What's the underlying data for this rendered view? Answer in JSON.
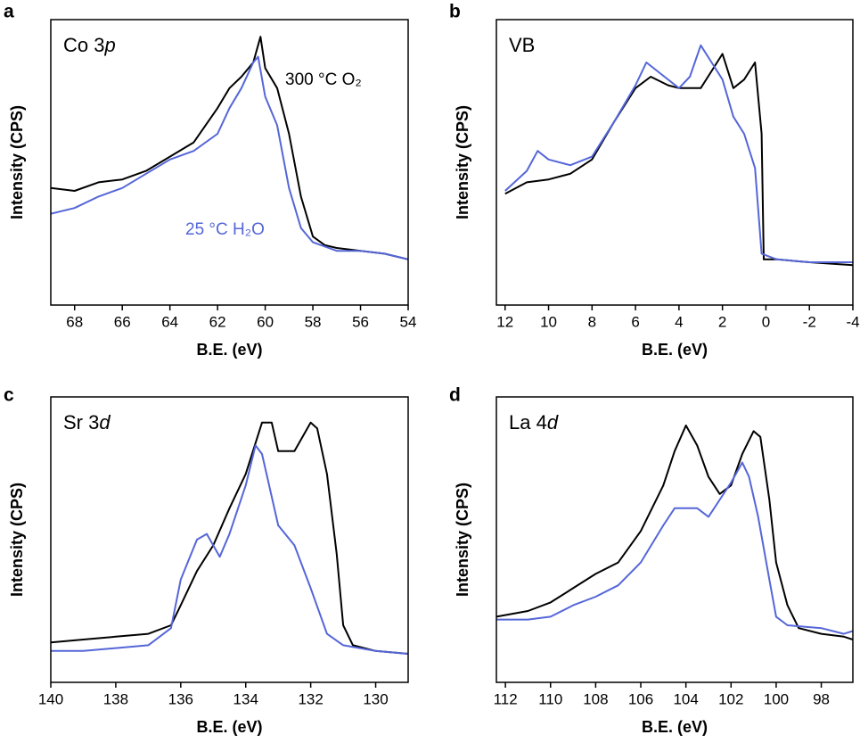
{
  "chart_data": [
    {
      "type": "line",
      "panel": "a",
      "label": [
        "Co 3",
        "p"
      ],
      "xlabel": "B.E. (eV)",
      "ylabel": "Intensity (CPS)",
      "xlim": [
        69,
        54
      ],
      "xticks": [
        68,
        66,
        64,
        62,
        60,
        58,
        56,
        54
      ],
      "ylim": [
        0,
        1
      ],
      "series": [
        {
          "name": "300 °C O₂",
          "color": "#000000",
          "x": [
            69,
            68,
            67,
            66,
            65,
            64,
            63,
            62,
            61.5,
            61,
            60.5,
            60.2,
            60,
            59.5,
            59,
            58.5,
            58,
            57.5,
            57,
            56,
            55,
            54
          ],
          "values": [
            0.41,
            0.4,
            0.43,
            0.44,
            0.47,
            0.52,
            0.57,
            0.69,
            0.76,
            0.8,
            0.85,
            0.94,
            0.83,
            0.76,
            0.6,
            0.38,
            0.24,
            0.21,
            0.2,
            0.19,
            0.18,
            0.16
          ]
        },
        {
          "name": "25 °C H₂O",
          "color": "#5566d8",
          "x": [
            69,
            68,
            67,
            66,
            65,
            64,
            63,
            62,
            61.5,
            61,
            60.5,
            60.3,
            60,
            59.5,
            59,
            58.5,
            58,
            57,
            56,
            55,
            54
          ],
          "values": [
            0.32,
            0.34,
            0.38,
            0.41,
            0.46,
            0.51,
            0.54,
            0.6,
            0.69,
            0.76,
            0.85,
            0.87,
            0.73,
            0.63,
            0.41,
            0.27,
            0.22,
            0.19,
            0.19,
            0.18,
            0.16
          ]
        }
      ]
    },
    {
      "type": "line",
      "panel": "b",
      "label": [
        "VB"
      ],
      "xlabel": "B.E. (eV)",
      "ylabel": "Intensity (CPS)",
      "xlim": [
        12.4,
        -4
      ],
      "xticks": [
        12,
        10,
        8,
        6,
        4,
        2,
        0,
        -2,
        -4
      ],
      "ylim": [
        0,
        1
      ],
      "series": [
        {
          "color": "#000000",
          "x": [
            12,
            11,
            10,
            9,
            8,
            7,
            6,
            5.3,
            4.5,
            4,
            3,
            2.5,
            2,
            1.5,
            1,
            0.5,
            0.2,
            0.1,
            -0.5,
            -2,
            -4
          ],
          "values": [
            0.39,
            0.43,
            0.44,
            0.46,
            0.51,
            0.64,
            0.76,
            0.8,
            0.77,
            0.76,
            0.76,
            0.82,
            0.88,
            0.76,
            0.79,
            0.85,
            0.6,
            0.16,
            0.16,
            0.15,
            0.14
          ]
        },
        {
          "color": "#5566d8",
          "x": [
            12,
            11,
            10.5,
            10,
            9,
            8,
            7,
            6,
            5.5,
            5,
            4,
            3.5,
            3,
            2.5,
            2,
            1.5,
            1,
            0.5,
            0.2,
            -0.5,
            -2,
            -4
          ],
          "values": [
            0.4,
            0.47,
            0.54,
            0.51,
            0.49,
            0.52,
            0.64,
            0.77,
            0.85,
            0.82,
            0.76,
            0.8,
            0.91,
            0.85,
            0.79,
            0.66,
            0.6,
            0.48,
            0.18,
            0.16,
            0.15,
            0.15
          ]
        }
      ]
    },
    {
      "type": "line",
      "panel": "c",
      "label": [
        "Sr 3",
        "d"
      ],
      "xlabel": "B.E. (eV)",
      "ylabel": "Intensity (CPS)",
      "xlim": [
        140,
        129
      ],
      "xticks": [
        140,
        138,
        136,
        134,
        132,
        130
      ],
      "ylim": [
        0,
        1
      ],
      "series": [
        {
          "color": "#000000",
          "x": [
            140,
            139,
            138,
            137,
            136.3,
            136,
            135.5,
            135,
            134.5,
            134,
            133.5,
            133.2,
            133,
            132.5,
            132,
            131.8,
            131.5,
            131.2,
            131,
            130.7,
            130,
            129
          ],
          "values": [
            0.14,
            0.15,
            0.16,
            0.17,
            0.2,
            0.27,
            0.39,
            0.48,
            0.61,
            0.73,
            0.91,
            0.91,
            0.81,
            0.81,
            0.91,
            0.89,
            0.73,
            0.45,
            0.2,
            0.13,
            0.11,
            0.1
          ]
        },
        {
          "color": "#5566d8",
          "x": [
            140,
            139,
            138,
            137,
            136.3,
            136,
            135.5,
            135.2,
            134.8,
            134.5,
            134,
            133.7,
            133.5,
            133,
            132.5,
            132,
            131.5,
            131,
            130,
            129
          ],
          "values": [
            0.11,
            0.11,
            0.12,
            0.13,
            0.19,
            0.36,
            0.5,
            0.52,
            0.44,
            0.52,
            0.69,
            0.83,
            0.8,
            0.55,
            0.48,
            0.33,
            0.17,
            0.13,
            0.11,
            0.1
          ]
        }
      ]
    },
    {
      "type": "line",
      "panel": "d",
      "label": [
        "La 4",
        "d"
      ],
      "xlabel": "B.E. (eV)",
      "ylabel": "Intensity (CPS)",
      "xlim": [
        112.4,
        96.6
      ],
      "xticks": [
        112,
        110,
        108,
        106,
        104,
        102,
        100,
        98
      ],
      "ylim": [
        0,
        1
      ],
      "series": [
        {
          "color": "#000000",
          "x": [
            112.4,
            111,
            110,
            109,
            108,
            107,
            106,
            105,
            104.5,
            104,
            103.5,
            103,
            102.5,
            102,
            101.5,
            101,
            100.7,
            100.3,
            100,
            99.5,
            99,
            98,
            97,
            96.6
          ],
          "values": [
            0.23,
            0.25,
            0.28,
            0.33,
            0.38,
            0.42,
            0.53,
            0.69,
            0.81,
            0.9,
            0.83,
            0.72,
            0.66,
            0.69,
            0.8,
            0.88,
            0.86,
            0.64,
            0.42,
            0.27,
            0.19,
            0.17,
            0.16,
            0.15
          ]
        },
        {
          "color": "#5566d8",
          "x": [
            112.4,
            111,
            110,
            109,
            108,
            107,
            106,
            105,
            104.5,
            104,
            103.5,
            103,
            102,
            101.5,
            101.2,
            100.8,
            100.3,
            100,
            99.5,
            98,
            97,
            96.6
          ],
          "values": [
            0.22,
            0.22,
            0.23,
            0.27,
            0.3,
            0.34,
            0.42,
            0.55,
            0.61,
            0.61,
            0.61,
            0.58,
            0.7,
            0.77,
            0.72,
            0.58,
            0.36,
            0.23,
            0.2,
            0.19,
            0.17,
            0.18
          ]
        }
      ]
    }
  ]
}
